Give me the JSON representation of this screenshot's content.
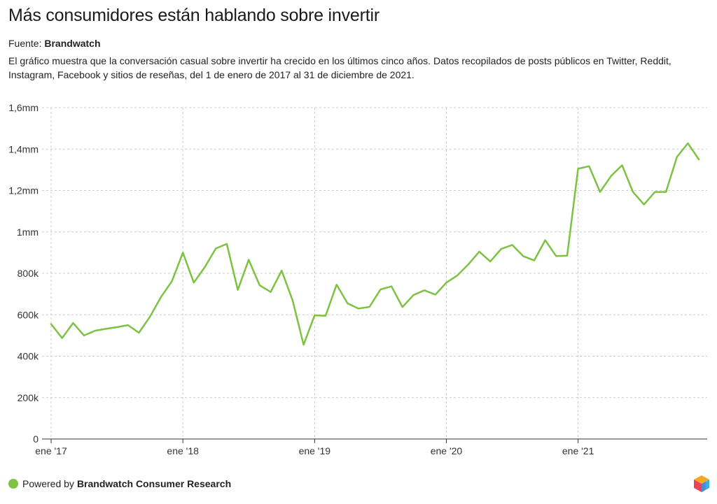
{
  "title": "Más consumidores están hablando sobre invertir",
  "source_label": "Fuente:",
  "source_name": "Brandwatch",
  "description": "El gráfico muestra que la conversación casual sobre invertir ha crecido en los últimos cinco años. Datos recopilados de posts públicos en Twitter, Reddit, Instagram, Facebook y sitios de reseñas, del 1 de enero de 2017 al 31 de diciembre de 2021.",
  "footer": {
    "powered_by": "Powered by",
    "brand": "Brandwatch Consumer Research"
  },
  "colors": {
    "line": "#7dc242",
    "grid": "#cccccc",
    "axis": "#333333"
  },
  "logo_icon": "brandwatch-cube-icon",
  "chart_data": {
    "type": "line",
    "title": "Más consumidores están hablando sobre invertir",
    "xlabel": "",
    "ylabel": "",
    "grid": true,
    "ylim": [
      0,
      1600000
    ],
    "y_ticks": [
      {
        "value": 0,
        "label": "0"
      },
      {
        "value": 200000,
        "label": "200k"
      },
      {
        "value": 400000,
        "label": "400k"
      },
      {
        "value": 600000,
        "label": "600k"
      },
      {
        "value": 800000,
        "label": "800k"
      },
      {
        "value": 1000000,
        "label": "1mm"
      },
      {
        "value": 1200000,
        "label": "1,2mm"
      },
      {
        "value": 1400000,
        "label": "1,4mm"
      },
      {
        "value": 1600000,
        "label": "1,6mm"
      }
    ],
    "x_ticks": [
      {
        "value": "2017-01",
        "label": "ene '17"
      },
      {
        "value": "2018-01",
        "label": "ene '18"
      },
      {
        "value": "2019-01",
        "label": "ene '19"
      },
      {
        "value": "2020-01",
        "label": "ene '20"
      },
      {
        "value": "2021-01",
        "label": "ene '21"
      }
    ],
    "xlim": [
      "2017-01",
      "2021-12"
    ],
    "x": [
      "2017-01",
      "2017-02",
      "2017-03",
      "2017-04",
      "2017-05",
      "2017-06",
      "2017-07",
      "2017-08",
      "2017-09",
      "2017-10",
      "2017-11",
      "2017-12",
      "2018-01",
      "2018-02",
      "2018-03",
      "2018-04",
      "2018-05",
      "2018-06",
      "2018-07",
      "2018-08",
      "2018-09",
      "2018-10",
      "2018-11",
      "2018-12",
      "2019-01",
      "2019-02",
      "2019-03",
      "2019-04",
      "2019-05",
      "2019-06",
      "2019-07",
      "2019-08",
      "2019-09",
      "2019-10",
      "2019-11",
      "2019-12",
      "2020-01",
      "2020-02",
      "2020-03",
      "2020-04",
      "2020-05",
      "2020-06",
      "2020-07",
      "2020-08",
      "2020-09",
      "2020-10",
      "2020-11",
      "2020-12",
      "2021-01",
      "2021-02",
      "2021-03",
      "2021-04",
      "2021-05",
      "2021-06",
      "2021-07",
      "2021-08",
      "2021-09",
      "2021-10",
      "2021-11",
      "2021-12"
    ],
    "series": [
      {
        "values": [
          555000,
          487000,
          560000,
          500000,
          523000,
          532000,
          540000,
          550000,
          513000,
          590000,
          685000,
          762000,
          900000,
          755000,
          830000,
          920000,
          942000,
          720000,
          865000,
          742000,
          710000,
          813000,
          668000,
          455000,
          597000,
          595000,
          745000,
          655000,
          630000,
          638000,
          722000,
          737000,
          637000,
          695000,
          718000,
          697000,
          755000,
          790000,
          843000,
          905000,
          857000,
          918000,
          937000,
          883000,
          862000,
          960000,
          883000,
          885000,
          1305000,
          1317000,
          1193000,
          1270000,
          1322000,
          1193000,
          1132000,
          1193000,
          1193000,
          1362000,
          1428000,
          1350000
        ]
      }
    ]
  }
}
